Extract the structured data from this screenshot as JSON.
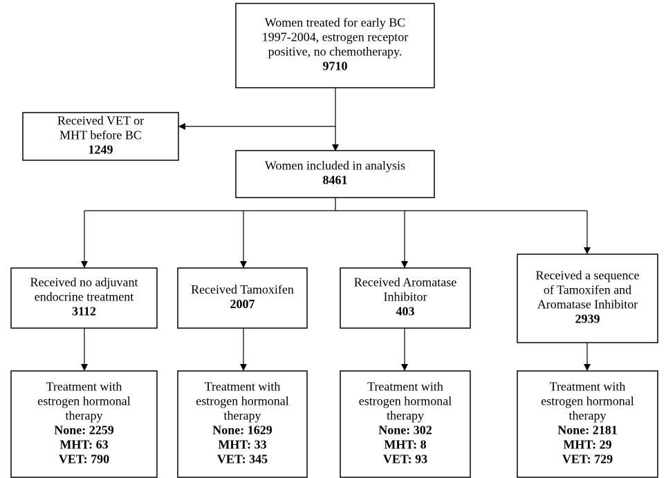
{
  "nodes": [
    {
      "lines": [
        "Women treated for early BC",
        "1997-2004, estrogen receptor",
        "positive, no chemotherapy."
      ],
      "bold": [
        "9710"
      ]
    },
    {
      "lines": [
        "Received VET or",
        "MHT before  BC"
      ],
      "bold": [
        "1249"
      ]
    },
    {
      "lines": [
        "Women included in analysis"
      ],
      "bold": [
        "8461"
      ]
    },
    {
      "lines": [
        "Received no adjuvant",
        "endocrine treatment"
      ],
      "bold": [
        "3112"
      ]
    },
    {
      "lines": [
        "Received Tamoxifen"
      ],
      "bold": [
        "2007"
      ]
    },
    {
      "lines": [
        "Received Aromatase",
        "Inhibitor"
      ],
      "bold": [
        "403"
      ]
    },
    {
      "lines": [
        "Received a sequence",
        "of Tamoxifen and",
        "Aromatase Inhibitor"
      ],
      "bold": [
        "2939"
      ]
    },
    {
      "lines": [
        "Treatment with",
        "estrogen hormonal",
        "therapy"
      ],
      "bold": [
        "None: 2259",
        "MHT: 63",
        "VET: 790"
      ]
    },
    {
      "lines": [
        "Treatment with",
        "estrogen hormonal",
        "therapy"
      ],
      "bold": [
        "None: 1629",
        "MHT: 33",
        "VET: 345"
      ]
    },
    {
      "lines": [
        "Treatment with",
        "estrogen hormonal",
        "therapy"
      ],
      "bold": [
        "None: 302",
        "MHT: 8",
        "VET: 93"
      ]
    },
    {
      "lines": [
        "Treatment with",
        "estrogen hormonal",
        "therapy"
      ],
      "bold": [
        "None: 2181",
        "MHT: 29",
        "VET: 729"
      ]
    }
  ]
}
